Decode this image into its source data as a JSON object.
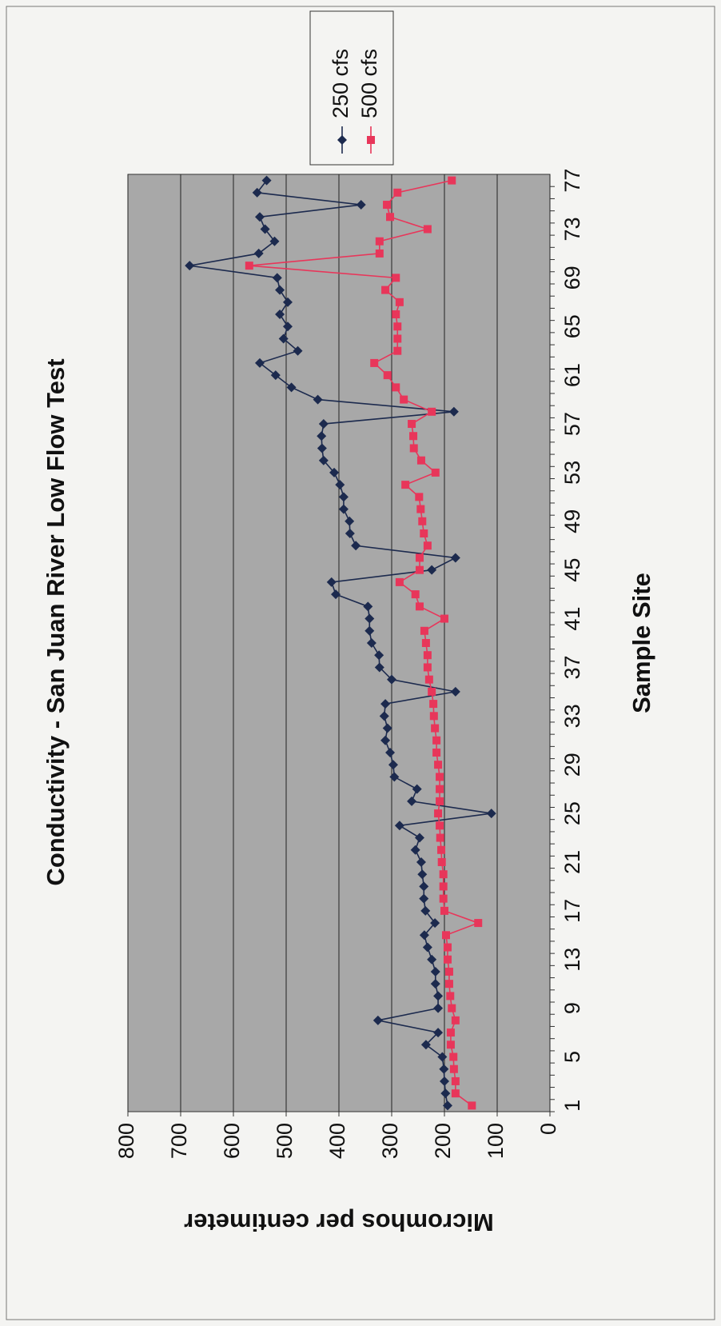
{
  "chart_data": {
    "type": "line",
    "title": "Conductivity - San Juan River Low Flow Test",
    "x_label": "Sample Site",
    "y_label": "Micromhos per centimeter",
    "categories": [
      "1",
      null,
      null,
      null,
      "5",
      null,
      null,
      null,
      "9",
      null,
      null,
      null,
      "13",
      null,
      null,
      null,
      "17",
      null,
      null,
      null,
      "21",
      null,
      null,
      null,
      "25",
      null,
      null,
      null,
      "29",
      null,
      null,
      null,
      "33",
      null,
      null,
      null,
      "37",
      null,
      null,
      null,
      "41",
      null,
      null,
      null,
      "45",
      null,
      null,
      null,
      "49",
      null,
      null,
      null,
      "53",
      null,
      null,
      null,
      "57",
      null,
      null,
      null,
      "61",
      null,
      null,
      null,
      "65",
      null,
      null,
      null,
      "69",
      null,
      null,
      null,
      "73",
      null,
      null,
      null,
      "77"
    ],
    "series": [
      {
        "name": "250 cfs",
        "color": "#1c2a4e",
        "marker": "diamond",
        "values": [
          194,
          198,
          200,
          201,
          204,
          235,
          212,
          326,
          212,
          212,
          217,
          217,
          224,
          232,
          238,
          218,
          236,
          239,
          239,
          242,
          244,
          255,
          247,
          285,
          111,
          262,
          252,
          295,
          297,
          303,
          312,
          308,
          314,
          312,
          179,
          300,
          323,
          324,
          338,
          342,
          342,
          345,
          406,
          414,
          224,
          179,
          368,
          379,
          380,
          391,
          391,
          398,
          409,
          429,
          432,
          433,
          429,
          182,
          440,
          490,
          520,
          550,
          478,
          505,
          497,
          512,
          497,
          512,
          517,
          683,
          552,
          522,
          540,
          550,
          358,
          555,
          537
        ]
      },
      {
        "name": "500 cfs",
        "color": "#e8365a",
        "marker": "square",
        "values": [
          148,
          179,
          179,
          182,
          183,
          188,
          188,
          179,
          186,
          189,
          191,
          191,
          194,
          194,
          197,
          136,
          200,
          202,
          202,
          202,
          205,
          206,
          208,
          209,
          212,
          209,
          209,
          209,
          212,
          215,
          215,
          218,
          220,
          221,
          224,
          229,
          232,
          232,
          235,
          238,
          200,
          247,
          255,
          285,
          247,
          247,
          232,
          239,
          242,
          245,
          248,
          274,
          217,
          244,
          258,
          259,
          262,
          224,
          277,
          292,
          308,
          333,
          289,
          289,
          289,
          292,
          285,
          312,
          292,
          570,
          323,
          323,
          232,
          303,
          309,
          289,
          186
        ]
      }
    ],
    "ylim": [
      0,
      800
    ],
    "yticks": [
      0,
      100,
      200,
      300,
      400,
      500,
      600,
      700,
      800
    ],
    "grid": true,
    "legend": "upper right"
  }
}
